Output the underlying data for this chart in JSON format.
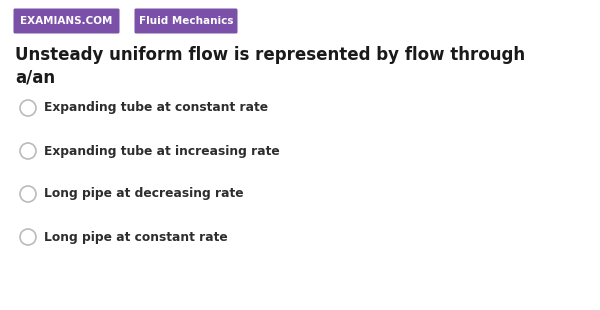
{
  "bg_color": "#ffffff",
  "tag1_text": "EXAMIANS.COM",
  "tag1_bg": "#7b50a8",
  "tag1_fg": "#ffffff",
  "tag2_text": "Fluid Mechanics",
  "tag2_bg": "#7b50a8",
  "tag2_fg": "#ffffff",
  "question_line1": "Unsteady uniform flow is represented by flow through",
  "question_line2": "a/an",
  "question_color": "#1a1a1a",
  "options": [
    "Expanding tube at constant rate",
    "Expanding tube at increasing rate",
    "Long pipe at decreasing rate",
    "Long pipe at constant rate"
  ],
  "option_color": "#2d2d2d",
  "radio_edge_color": "#bbbbbb",
  "radio_face_color": "#ffffff",
  "fig_width": 6.0,
  "fig_height": 3.1,
  "dpi": 100
}
